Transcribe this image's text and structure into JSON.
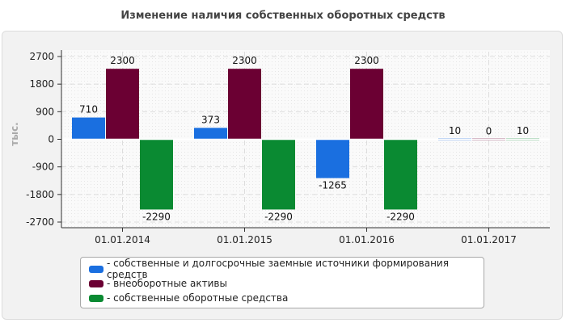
{
  "colors": {
    "blue": "#1a6fe0",
    "maroon": "#6b0033",
    "green": "#0a8a32",
    "zero_line": "#ffffff",
    "grid": "#dddddd",
    "axis": "#333333"
  },
  "chart_data": {
    "type": "bar",
    "title": "Изменение наличия собственных оборотных средств",
    "ylabel": "тыс.",
    "xlabel": "",
    "categories": [
      "01.01.2014",
      "01.01.2015",
      "01.01.2016",
      "01.01.2017"
    ],
    "series": [
      {
        "name": "- собственные и долгосрочные заемные источники формирования средств",
        "values": [
          710,
          373,
          -1265,
          10
        ],
        "color": "#1a6fe0"
      },
      {
        "name": "- внеоборотные активы",
        "values": [
          2300,
          2300,
          2300,
          0
        ],
        "color": "#6b0033"
      },
      {
        "name": "- собственные оборотные средства",
        "values": [
          -2290,
          -2290,
          -2290,
          10
        ],
        "color": "#0a8a32"
      }
    ],
    "yticks": [
      2700,
      1800,
      900,
      0,
      -900,
      -1800,
      -2700
    ],
    "ylim": [
      -2700,
      2700
    ],
    "grid": true,
    "legend_position": "bottom"
  }
}
